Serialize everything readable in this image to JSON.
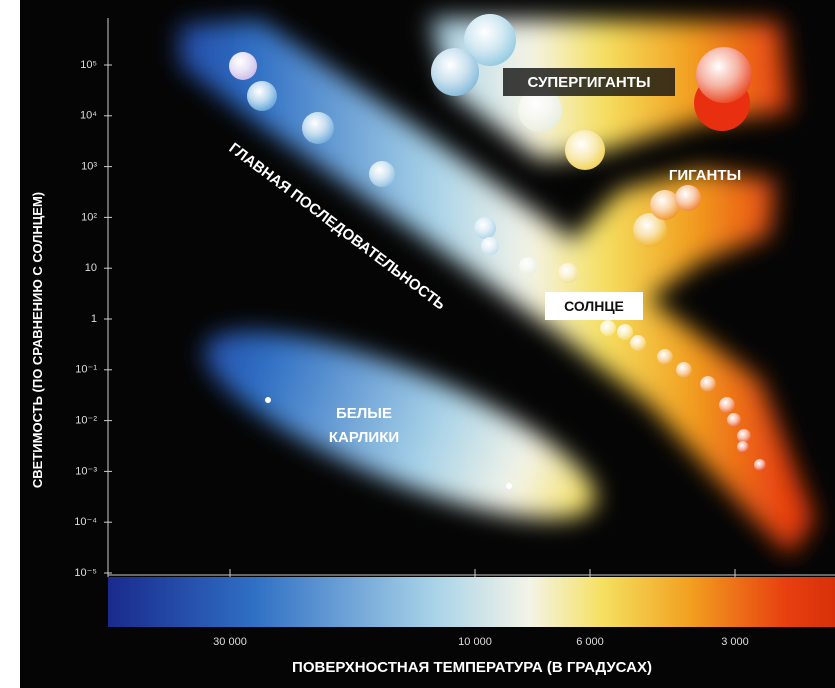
{
  "y_axis": {
    "title": "СВЕТИМОСТЬ (ПО СРАВНЕНИЮ С СОЛНЦЕМ)",
    "ticks": [
      "10⁵",
      "10⁴",
      "10³",
      "10²",
      "10",
      "1",
      "10⁻¹",
      "10⁻²",
      "10⁻³",
      "10⁻⁴",
      "10⁻⁵"
    ]
  },
  "x_axis": {
    "title": "ПОВЕРХНОСТНАЯ ТЕМПЕРАТУРА (В ГРАДУСАХ)",
    "ticks": [
      "30 000",
      "10 000",
      "6 000",
      "3 000"
    ]
  },
  "labels": {
    "supergiants": "СУПЕРГИГАНТЫ",
    "giants": "ГИГАНТЫ",
    "sun": "СОЛНЦЕ",
    "white_dwarfs": [
      "БЕЛЫЕ",
      "КАРЛИКИ"
    ],
    "main_sequence": "ГЛАВНАЯ ПОСЛЕДОВАТЕЛЬНОСТЬ"
  }
}
